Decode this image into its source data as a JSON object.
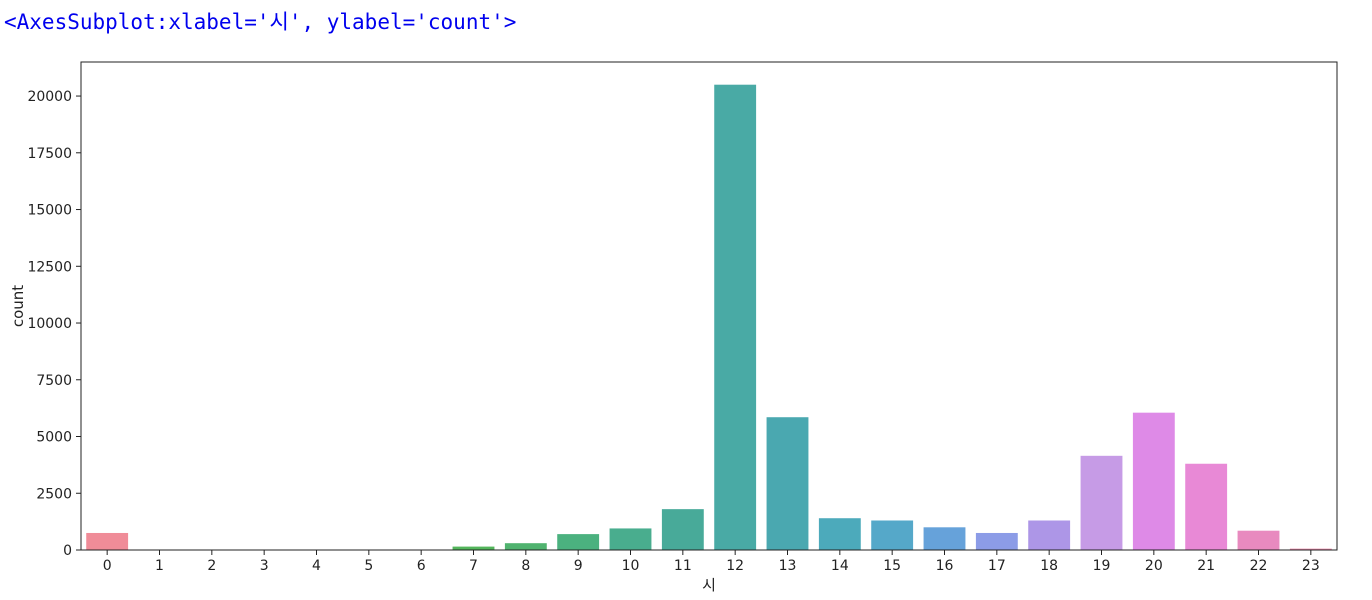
{
  "output": {
    "repr_text": "<AxesSubplot:xlabel='시', ylabel='count'>"
  },
  "chart_data": {
    "type": "bar",
    "xlabel": "시",
    "ylabel": "count",
    "categories": [
      "0",
      "1",
      "2",
      "3",
      "4",
      "5",
      "6",
      "7",
      "8",
      "9",
      "10",
      "11",
      "12",
      "13",
      "14",
      "15",
      "16",
      "17",
      "18",
      "19",
      "20",
      "21",
      "22",
      "23"
    ],
    "values": [
      750,
      5,
      5,
      5,
      5,
      5,
      5,
      150,
      300,
      700,
      950,
      1800,
      20500,
      5850,
      1400,
      1300,
      1000,
      750,
      1300,
      4150,
      6050,
      3800,
      850,
      60
    ],
    "colors": [
      "#f08c98",
      "#eb9172",
      "#d79c4c",
      "#bfa24a",
      "#a9a84a",
      "#90ad4a",
      "#6bb34a",
      "#53b55b",
      "#50b36f",
      "#4bb17f",
      "#49ad8e",
      "#48aa99",
      "#49aaa5",
      "#4aa8b0",
      "#4caabb",
      "#55a8c9",
      "#66a2da",
      "#8c9ce7",
      "#ad96e7",
      "#c69be6",
      "#de8ae7",
      "#e889d6",
      "#e88abf",
      "#ea88a9"
    ],
    "yticks": [
      0,
      2500,
      5000,
      7500,
      10000,
      12500,
      15000,
      17500,
      20000
    ],
    "ylim": [
      0,
      21500
    ],
    "grid": false,
    "legend": "none"
  }
}
